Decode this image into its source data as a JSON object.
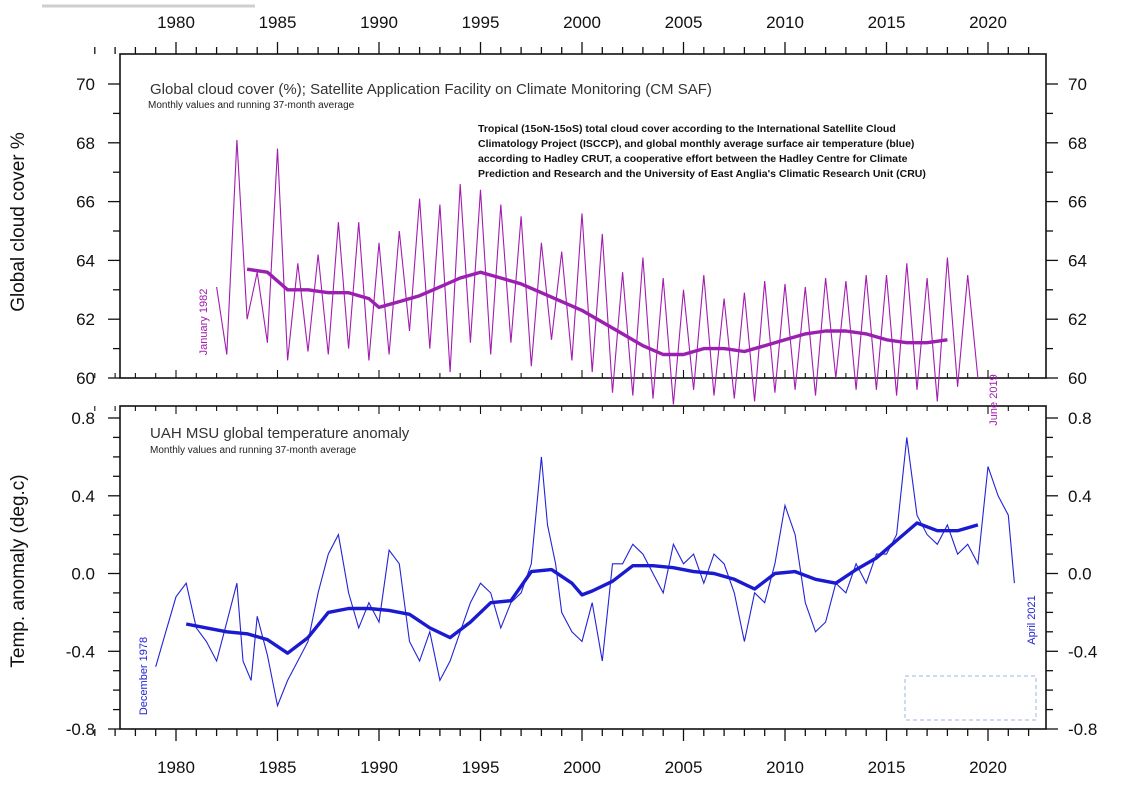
{
  "colors": {
    "cloud": "#a21caf",
    "cloud_mean": "#9b1fb0",
    "temp": "#2323d6",
    "temp_mean": "#1a1ad0",
    "axis": "#111111",
    "empty_box": "#9db3e6"
  },
  "chart_data": [
    {
      "type": "line",
      "title": "Global cloud cover (%); Satellite Application Facility on Climate Monitoring (CM SAF)",
      "subtitle": "Monthly values and running 37-month average",
      "annotation": "Tropical (15oN-15oS) total cloud cover according to the International Satellite Cloud Climatology Project (ISCCP), and global monthly average surface air temperature (blue) according to Hadley CRUT, a cooperative effort between the Hadley Centre for Climate Prediction and Research and the University of East Anglia's Climatic Research Unit (CRU)",
      "annotation_lines": [
        "Tropical (15oN-15oS) total cloud cover according to the International Satellite Cloud",
        "Climatology Project (ISCCP), and global monthly average surface air temperature (blue)",
        "according to Hadley CRUT, a cooperative effort between the Hadley Centre for Climate",
        "Prediction and Research and the University of East Anglia's Climatic Research Unit (CRU)"
      ],
      "ylabel": "Global cloud cover %",
      "ylim": [
        60,
        70
      ],
      "yticks": [
        60,
        62,
        64,
        66,
        68,
        70
      ],
      "xlim": [
        1975,
        2023
      ],
      "xticks": [
        1980,
        1985,
        1990,
        1995,
        2000,
        2005,
        2010,
        2015,
        2020
      ],
      "start_label": "January 1982",
      "end_label": "June 2019",
      "series": [
        {
          "kind": "monthly",
          "x": [
            1982.0,
            1982.5,
            1983.0,
            1983.5,
            1984.0,
            1984.5,
            1985.0,
            1985.5,
            1986.0,
            1986.5,
            1987.0,
            1987.5,
            1988.0,
            1988.5,
            1989.0,
            1989.5,
            1990.0,
            1990.5,
            1991.0,
            1991.5,
            1992.0,
            1992.5,
            1993.0,
            1993.5,
            1994.0,
            1994.5,
            1995.0,
            1995.5,
            1996.0,
            1996.5,
            1997.0,
            1997.5,
            1998.0,
            1998.5,
            1999.0,
            1999.5,
            2000.0,
            2000.5,
            2001.0,
            2001.5,
            2002.0,
            2002.5,
            2003.0,
            2003.5,
            2004.0,
            2004.5,
            2005.0,
            2005.5,
            2006.0,
            2006.5,
            2007.0,
            2007.5,
            2008.0,
            2008.5,
            2009.0,
            2009.5,
            2010.0,
            2010.5,
            2011.0,
            2011.5,
            2012.0,
            2012.5,
            2013.0,
            2013.5,
            2014.0,
            2014.5,
            2015.0,
            2015.5,
            2016.0,
            2016.5,
            2017.0,
            2017.5,
            2018.0,
            2018.5,
            2019.0,
            2019.5
          ],
          "y": [
            63.1,
            60.8,
            68.1,
            62.0,
            63.6,
            61.2,
            67.8,
            60.6,
            63.9,
            60.9,
            64.2,
            60.8,
            65.3,
            61.0,
            65.3,
            60.6,
            64.6,
            60.8,
            65.0,
            61.6,
            66.1,
            61.0,
            65.9,
            60.2,
            66.6,
            61.2,
            66.4,
            60.8,
            65.9,
            61.2,
            65.5,
            60.4,
            64.6,
            61.3,
            64.3,
            60.6,
            65.6,
            60.2,
            64.9,
            59.5,
            63.6,
            59.4,
            64.1,
            59.3,
            63.4,
            59.1,
            63.0,
            59.6,
            63.5,
            59.4,
            62.7,
            59.3,
            62.9,
            59.2,
            63.3,
            59.5,
            63.2,
            59.6,
            63.1,
            59.4,
            63.4,
            60.0,
            63.3,
            59.6,
            63.5,
            59.6,
            63.5,
            59.4,
            63.9,
            59.6,
            63.4,
            59.2,
            64.1,
            59.7,
            63.5,
            60.0
          ]
        },
        {
          "kind": "running-37-month-average",
          "x": [
            1983.5,
            1984.5,
            1985.5,
            1986.5,
            1987.5,
            1988.5,
            1989.5,
            1990.0,
            1991.0,
            1992.0,
            1993.0,
            1994.0,
            1995.0,
            1996.0,
            1997.0,
            1998.0,
            1999.0,
            2000.0,
            2001.0,
            2002.0,
            2003.0,
            2004.0,
            2005.0,
            2006.0,
            2007.0,
            2008.0,
            2009.0,
            2010.0,
            2011.0,
            2012.0,
            2013.0,
            2014.0,
            2015.0,
            2016.0,
            2017.0,
            2018.0
          ],
          "y": [
            63.7,
            63.6,
            63.0,
            63.0,
            62.9,
            62.9,
            62.7,
            62.4,
            62.6,
            62.8,
            63.1,
            63.4,
            63.6,
            63.4,
            63.2,
            62.9,
            62.6,
            62.3,
            61.9,
            61.5,
            61.1,
            60.8,
            60.8,
            61.0,
            61.0,
            60.9,
            61.1,
            61.3,
            61.5,
            61.6,
            61.6,
            61.5,
            61.3,
            61.2,
            61.2,
            61.3
          ]
        }
      ]
    },
    {
      "type": "line",
      "title": "UAH MSU global temperature anomaly",
      "subtitle": "Monthly values and running 37-month average",
      "ylabel": "Temp. anomaly (deg.c)",
      "ylim": [
        -0.8,
        0.8
      ],
      "yticks": [
        -0.8,
        -0.4,
        0.0,
        0.4,
        0.8
      ],
      "xlim": [
        1975,
        2023
      ],
      "xticks": [
        1980,
        1985,
        1990,
        1995,
        2000,
        2005,
        2010,
        2015,
        2020
      ],
      "start_label": "December 1978",
      "end_label": "April 2021",
      "series": [
        {
          "kind": "monthly",
          "x": [
            1979.0,
            1979.5,
            1980.0,
            1980.5,
            1981.0,
            1981.5,
            1982.0,
            1982.5,
            1983.0,
            1983.3,
            1983.7,
            1984.0,
            1984.5,
            1985.0,
            1985.5,
            1986.0,
            1986.5,
            1987.0,
            1987.5,
            1988.0,
            1988.5,
            1989.0,
            1989.5,
            1990.0,
            1990.5,
            1991.0,
            1991.5,
            1992.0,
            1992.5,
            1993.0,
            1993.5,
            1994.0,
            1994.5,
            1995.0,
            1995.5,
            1996.0,
            1996.5,
            1997.0,
            1997.5,
            1998.0,
            1998.3,
            1998.7,
            1999.0,
            1999.5,
            2000.0,
            2000.5,
            2001.0,
            2001.5,
            2002.0,
            2002.5,
            2003.0,
            2003.5,
            2004.0,
            2004.5,
            2005.0,
            2005.5,
            2006.0,
            2006.5,
            2007.0,
            2007.5,
            2008.0,
            2008.5,
            2009.0,
            2009.5,
            2010.0,
            2010.5,
            2011.0,
            2011.5,
            2012.0,
            2012.5,
            2013.0,
            2013.5,
            2014.0,
            2014.5,
            2015.0,
            2015.5,
            2016.0,
            2016.5,
            2017.0,
            2017.5,
            2018.0,
            2018.5,
            2019.0,
            2019.5,
            2020.0,
            2020.5,
            2021.0,
            2021.3
          ],
          "y": [
            -0.48,
            -0.3,
            -0.12,
            -0.05,
            -0.28,
            -0.35,
            -0.45,
            -0.25,
            -0.05,
            -0.45,
            -0.55,
            -0.22,
            -0.42,
            -0.68,
            -0.55,
            -0.45,
            -0.35,
            -0.1,
            0.1,
            0.2,
            -0.1,
            -0.28,
            -0.15,
            -0.25,
            0.12,
            0.05,
            -0.35,
            -0.45,
            -0.3,
            -0.55,
            -0.45,
            -0.3,
            -0.15,
            -0.05,
            -0.1,
            -0.28,
            -0.15,
            -0.1,
            0.05,
            0.6,
            0.25,
            0.05,
            -0.2,
            -0.3,
            -0.35,
            -0.15,
            -0.45,
            0.05,
            0.05,
            0.15,
            0.1,
            0.0,
            -0.1,
            0.15,
            0.05,
            0.1,
            -0.05,
            0.1,
            0.05,
            -0.1,
            -0.35,
            -0.1,
            -0.15,
            0.05,
            0.35,
            0.2,
            -0.15,
            -0.3,
            -0.25,
            -0.05,
            -0.1,
            0.05,
            -0.05,
            0.1,
            0.1,
            0.2,
            0.7,
            0.3,
            0.2,
            0.15,
            0.25,
            0.1,
            0.15,
            0.05,
            0.55,
            0.4,
            0.3,
            -0.05
          ]
        },
        {
          "kind": "running-37-month-average",
          "x": [
            1980.5,
            1981.5,
            1982.5,
            1983.5,
            1984.5,
            1985.5,
            1986.5,
            1987.5,
            1988.5,
            1989.5,
            1990.5,
            1991.5,
            1992.5,
            1993.5,
            1994.5,
            1995.5,
            1996.5,
            1997.5,
            1998.5,
            1999.5,
            2000.0,
            2000.5,
            2001.5,
            2002.5,
            2003.5,
            2004.5,
            2005.5,
            2006.5,
            2007.5,
            2008.5,
            2009.5,
            2010.5,
            2011.5,
            2012.5,
            2013.5,
            2014.5,
            2015.5,
            2016.5,
            2017.5,
            2018.5,
            2019.5
          ],
          "y": [
            -0.26,
            -0.28,
            -0.3,
            -0.31,
            -0.34,
            -0.41,
            -0.33,
            -0.2,
            -0.18,
            -0.18,
            -0.19,
            -0.21,
            -0.28,
            -0.33,
            -0.25,
            -0.15,
            -0.14,
            0.01,
            0.02,
            -0.05,
            -0.11,
            -0.09,
            -0.04,
            0.04,
            0.04,
            0.03,
            0.01,
            0.0,
            -0.03,
            -0.08,
            0.0,
            0.01,
            -0.03,
            -0.05,
            0.02,
            0.08,
            0.17,
            0.26,
            0.22,
            0.22,
            0.25
          ]
        }
      ]
    }
  ]
}
